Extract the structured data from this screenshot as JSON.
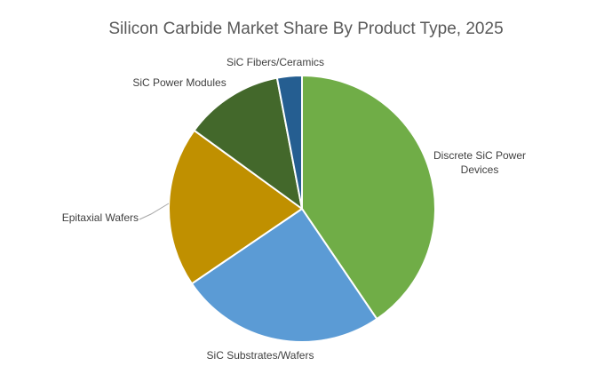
{
  "chart_data": {
    "type": "pie",
    "title": "Silicon Carbide Market Share By Product Type, 2025",
    "categories": [
      "Discrete SiC Power Devices",
      "SiC Substrates/Wafers",
      "Epitaxial Wafers",
      "SiC Power Modules",
      "SiC Fibers/Ceramics"
    ],
    "values": [
      40.5,
      25.0,
      19.5,
      12.0,
      3.0
    ],
    "unit": "%",
    "colors": [
      "#70ad47",
      "#5b9bd5",
      "#c09000",
      "#43682b",
      "#255e91"
    ],
    "start_angle_deg": 0,
    "direction": "clockwise",
    "legend": "none",
    "data_labels": "category names outside slices"
  }
}
